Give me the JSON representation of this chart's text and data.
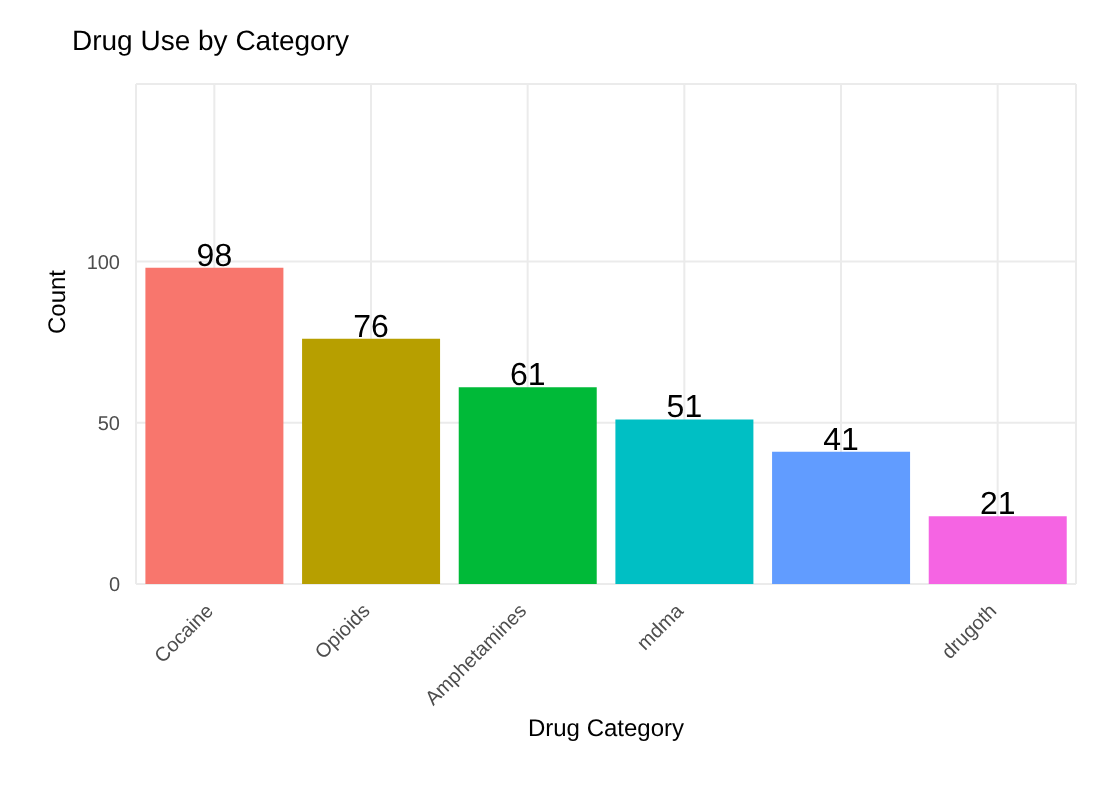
{
  "chart_data": {
    "type": "bar",
    "title": "Drug Use by Category",
    "xlabel": "Drug Category",
    "ylabel": "Count",
    "categories": [
      "Cocaine",
      "Opioids",
      "Amphetamines",
      "mdma",
      null,
      "drugoth"
    ],
    "values": [
      98,
      76,
      61,
      51,
      41,
      21
    ],
    "colors": [
      "#f8766d",
      "#b79f00",
      "#00ba38",
      "#00bfc4",
      "#619cff",
      "#f564e3"
    ],
    "ylim": [
      0,
      155
    ],
    "yticks": [
      0,
      50,
      100
    ],
    "grid": true,
    "data_labels": true
  }
}
